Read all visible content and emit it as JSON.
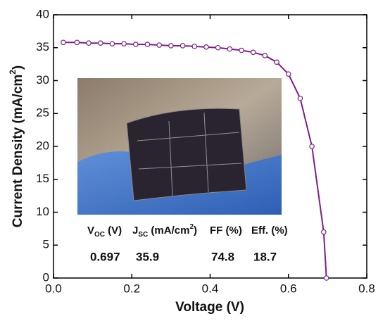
{
  "chart_data": {
    "type": "line",
    "x_label": "Voltage  (V)",
    "y_label": {
      "text": "Current Density (mA/cm",
      "sup": "2",
      "end": ")"
    },
    "x": [
      0.025,
      0.06,
      0.09,
      0.12,
      0.15,
      0.18,
      0.21,
      0.24,
      0.27,
      0.3,
      0.33,
      0.36,
      0.39,
      0.42,
      0.45,
      0.48,
      0.51,
      0.54,
      0.57,
      0.6,
      0.63,
      0.66,
      0.69,
      0.697
    ],
    "series": [
      {
        "color": "#7b1e86",
        "values": [
          35.8,
          35.8,
          35.7,
          35.7,
          35.6,
          35.6,
          35.5,
          35.5,
          35.4,
          35.3,
          35.3,
          35.2,
          35.1,
          35.0,
          34.8,
          34.6,
          34.3,
          33.8,
          32.8,
          31.0,
          27.3,
          20.0,
          7.0,
          0
        ]
      }
    ],
    "xlim": [
      0,
      0.8
    ],
    "ylim": [
      0,
      40
    ],
    "xticks": [
      {
        "value": 0,
        "label": "0.0"
      },
      0.2,
      0.4,
      0.6,
      0.8
    ],
    "yticks": [
      0,
      5,
      10,
      15,
      20,
      25,
      30,
      35,
      40
    ],
    "table": {
      "headers": [
        [
          {
            "text": "V"
          },
          {
            "sub": "OC"
          },
          {
            "text": " (V)"
          }
        ],
        [
          {
            "text": "J"
          },
          {
            "sub": "SC"
          },
          {
            "text": " (mA/cm"
          },
          {
            "sup": "2"
          },
          {
            "text": ")"
          }
        ],
        [
          {
            "text": "FF (%)"
          }
        ],
        [
          {
            "text": "Eff. (%)"
          }
        ]
      ],
      "values": [
        "0.697",
        "35.9",
        "74.8",
        "18.7"
      ]
    }
  }
}
